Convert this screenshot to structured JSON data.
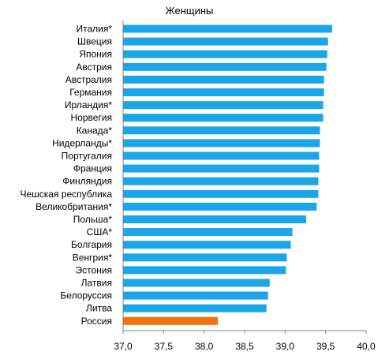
{
  "chart_data": {
    "type": "bar",
    "orientation": "horizontal",
    "title": "Женщины",
    "categories": [
      "Италия*",
      "Швеция",
      "Япония",
      "Австрия",
      "Австралия",
      "Германия",
      "Ирландия*",
      "Норвегия",
      "Канада*",
      "Нидерланды*",
      "Португалия",
      "Франция",
      "Финляндия",
      "Чешская республика",
      "Великобритания*",
      "Польша*",
      "США*",
      "Болгария",
      "Венгрия*",
      "Эстония",
      "Латвия",
      "Белоруссия",
      "Литва",
      "Россия"
    ],
    "values": [
      39.58,
      39.53,
      39.52,
      39.51,
      39.48,
      39.48,
      39.47,
      39.47,
      39.43,
      39.43,
      39.42,
      39.42,
      39.41,
      39.41,
      39.39,
      39.26,
      39.09,
      39.07,
      39.02,
      39.01,
      38.81,
      38.79,
      38.77,
      38.17
    ],
    "xlim": [
      37.0,
      40.0
    ],
    "x_ticks": [
      "37,0",
      "37,5",
      "38,0",
      "38,5",
      "39,0",
      "39,5",
      "40,0"
    ],
    "x_tick_values": [
      37.0,
      37.5,
      38.0,
      38.5,
      39.0,
      39.5,
      40.0
    ],
    "grid": false,
    "colors": {
      "default_bar": "#1AA6E8",
      "highlight_bar": "#F0730F",
      "axis": "#808080",
      "text": "#000000"
    },
    "highlight_category": "Россия"
  }
}
